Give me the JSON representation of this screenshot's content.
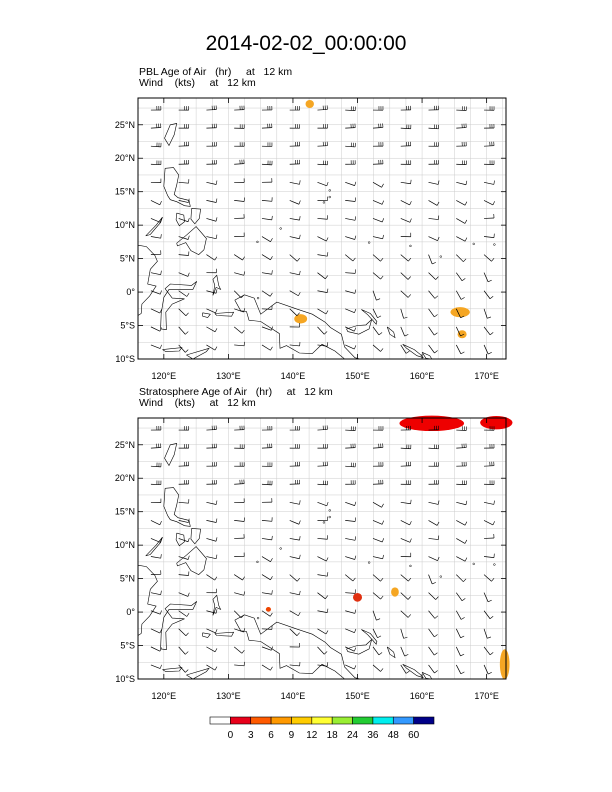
{
  "title": "2014-02-02_00:00:00",
  "panels": [
    {
      "id": "pbl",
      "line1": "PBL Age of Air   (hr)     at   12 km",
      "line2": "Wind    (kts)     at   12 km",
      "age_blobs": [
        {
          "lon": 142.6,
          "lat": 28.1,
          "w": 1.3,
          "h": 1.2,
          "color": "#f5a623"
        },
        {
          "lon": 141.2,
          "lat": -4.0,
          "w": 2.0,
          "h": 1.4,
          "color": "#f5a623"
        },
        {
          "lon": 165.9,
          "lat": -3.0,
          "w": 3.0,
          "h": 1.5,
          "color": "#f5a623"
        },
        {
          "lon": 166.2,
          "lat": -6.3,
          "w": 1.4,
          "h": 1.2,
          "color": "#f5a623"
        }
      ]
    },
    {
      "id": "strat",
      "line1": "Stratosphere Age of Air   (hr)     at   12 km",
      "line2": "Wind    (kts)     at   12 km",
      "age_blobs": [
        {
          "lon": 161.5,
          "lat": 28.2,
          "w": 10.0,
          "h": 2.3,
          "color": "#ee0000"
        },
        {
          "lon": 171.5,
          "lat": 28.3,
          "w": 5.0,
          "h": 2.0,
          "color": "#ee0000"
        },
        {
          "lon": 150.0,
          "lat": 2.2,
          "w": 1.4,
          "h": 1.3,
          "color": "#e03010"
        },
        {
          "lon": 155.8,
          "lat": 3.0,
          "w": 1.2,
          "h": 1.4,
          "color": "#f5a623"
        },
        {
          "lon": 172.8,
          "lat": -7.8,
          "w": 1.5,
          "h": 4.5,
          "color": "#f5a623"
        },
        {
          "lon": 136.2,
          "lat": 0.4,
          "w": 0.8,
          "h": 0.7,
          "color": "#ee4400"
        }
      ]
    }
  ],
  "map": {
    "lon_range": [
      116,
      173
    ],
    "lat_range": [
      -10,
      29
    ],
    "lon_ticks": [
      "120°E",
      "130°E",
      "140°E",
      "150°E",
      "160°E",
      "170°E"
    ],
    "lon_tick_values": [
      120,
      130,
      140,
      150,
      160,
      170
    ],
    "lat_ticks": [
      "25°N",
      "20°N",
      "15°N",
      "10°N",
      "5°N",
      "0°",
      "5°S",
      "10°S"
    ],
    "lat_tick_values": [
      25,
      20,
      15,
      10,
      5,
      0,
      -5,
      -10
    ],
    "grid_color": "#cccccc"
  },
  "colorbar": {
    "labels": [
      "0",
      "3",
      "6",
      "9",
      "12",
      "18",
      "24",
      "36",
      "48",
      "60"
    ],
    "colors": [
      "#ffffff",
      "#e8001a",
      "#ff5a00",
      "#ff9900",
      "#ffcc00",
      "#ffff33",
      "#99ee33",
      "#22cc33",
      "#00eeee",
      "#3399ff",
      "#000088"
    ]
  }
}
